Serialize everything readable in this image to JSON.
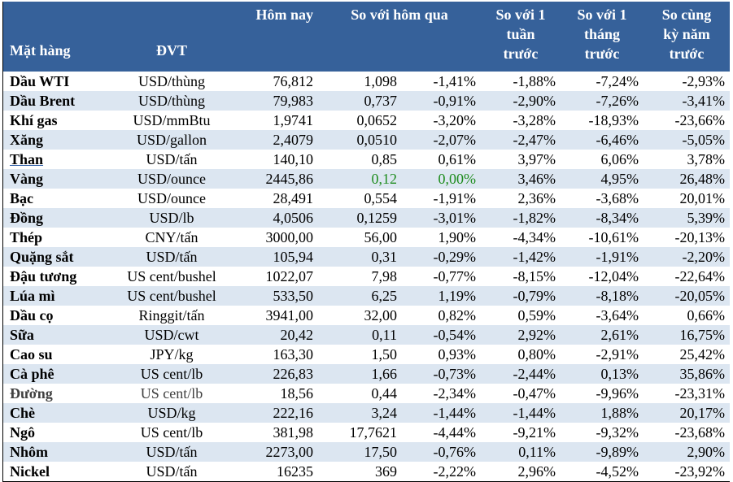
{
  "header": {
    "item": "Mặt hàng",
    "unit": "ĐVT",
    "today": "Hôm nay",
    "vs_yesterday": "So với hôm qua",
    "vs_week": [
      "So với 1",
      "tuần",
      "trước"
    ],
    "vs_month": [
      "So với 1",
      "tháng",
      "trước"
    ],
    "vs_year": [
      "So cùng",
      "kỳ năm",
      "trước"
    ]
  },
  "rows": [
    {
      "name": "Dầu WTI",
      "unit": "USD/thùng",
      "today": "76,812",
      "chg": "1,098",
      "chg_pct": "-1,41%",
      "week": "-1,88%",
      "month": "-7,24%",
      "year": "-2,93%"
    },
    {
      "name": "Dầu Brent",
      "unit": "USD/thùng",
      "today": "79,983",
      "chg": "0,737",
      "chg_pct": "-0,91%",
      "week": "-2,90%",
      "month": "-7,26%",
      "year": "-3,41%"
    },
    {
      "name": "Khí gas",
      "unit": "USD/mmBtu",
      "today": "1,9741",
      "chg": "0,0652",
      "chg_pct": "-3,20%",
      "week": "-3,28%",
      "month": "-18,93%",
      "year": "-23,66%"
    },
    {
      "name": "Xăng",
      "unit": "USD/gallon",
      "today": "2,4079",
      "chg": "0,0510",
      "chg_pct": "-2,07%",
      "week": "-2,47%",
      "month": "-6,46%",
      "year": "-5,05%"
    },
    {
      "name": "Than",
      "unit": "USD/tấn",
      "today": "140,10",
      "chg": "0,85",
      "chg_pct": "0,61%",
      "week": "3,97%",
      "month": "6,06%",
      "year": "3,78%"
    },
    {
      "name": "Vàng",
      "unit": "USD/ounce",
      "today": "2445,86",
      "chg": "0,12",
      "chg_pct": "0,00%",
      "week": "3,46%",
      "month": "4,95%",
      "year": "26,48%"
    },
    {
      "name": "Bạc",
      "unit": "USD/ounce",
      "today": "28,491",
      "chg": "0,554",
      "chg_pct": "-1,91%",
      "week": "2,36%",
      "month": "-3,68%",
      "year": "20,01%"
    },
    {
      "name": "Đồng",
      "unit": "USD/lb",
      "today": "4,0506",
      "chg": "0,1259",
      "chg_pct": "-3,01%",
      "week": "-1,82%",
      "month": "-8,34%",
      "year": "5,39%"
    },
    {
      "name": "Thép",
      "unit": "CNY/tấn",
      "today": "3000,00",
      "chg": "56,00",
      "chg_pct": "1,90%",
      "week": "-4,34%",
      "month": "-10,61%",
      "year": "-20,13%"
    },
    {
      "name": "Quặng sắt",
      "unit": "USD/tấn",
      "today": "105,94",
      "chg": "0,31",
      "chg_pct": "-0,29%",
      "week": "-1,42%",
      "month": "-1,91%",
      "year": "-2,20%"
    },
    {
      "name": "Đậu tương",
      "unit": "US cent/bushel",
      "today": "1022,07",
      "chg": "7,98",
      "chg_pct": "-0,77%",
      "week": "-8,15%",
      "month": "-12,04%",
      "year": "-22,64%"
    },
    {
      "name": "Lúa mì",
      "unit": "US cent/bushel",
      "today": "533,50",
      "chg": "6,25",
      "chg_pct": "1,19%",
      "week": "-0,79%",
      "month": "-8,18%",
      "year": "-20,05%"
    },
    {
      "name": "Dầu cọ",
      "unit": "Ringgit/tấn",
      "today": "3941,00",
      "chg": "32,00",
      "chg_pct": "0,82%",
      "week": "0,59%",
      "month": "-3,64%",
      "year": "0,66%"
    },
    {
      "name": "Sữa",
      "unit": "USD/cwt",
      "today": "20,42",
      "chg": "0,11",
      "chg_pct": "-0,54%",
      "week": "2,92%",
      "month": "2,61%",
      "year": "16,75%"
    },
    {
      "name": "Cao su",
      "unit": "JPY/kg",
      "today": "163,30",
      "chg": "1,50",
      "chg_pct": "0,93%",
      "week": "0,80%",
      "month": "-2,91%",
      "year": "25,42%"
    },
    {
      "name": "Cà phê",
      "unit": "US cent/lb",
      "today": "226,83",
      "chg": "1,66",
      "chg_pct": "-0,73%",
      "week": "-2,44%",
      "month": "0,13%",
      "year": "35,86%"
    },
    {
      "name": "Đường",
      "unit": "US cent/lb",
      "today": "18,56",
      "chg": "0,44",
      "chg_pct": "-2,34%",
      "week": "-0,47%",
      "month": "-9,96%",
      "year": "-23,31%"
    },
    {
      "name": "Chè",
      "unit": "USD/kg",
      "today": "222,16",
      "chg": "3,24",
      "chg_pct": "-1,44%",
      "week": "-1,44%",
      "month": "1,88%",
      "year": "20,17%"
    },
    {
      "name": "Ngô",
      "unit": "US cent/lb",
      "today": "381,98",
      "chg": "17,7621",
      "chg_pct": "-4,44%",
      "week": "-9,21%",
      "month": "-9,32%",
      "year": "-23,68%"
    },
    {
      "name": "Nhôm",
      "unit": "USD/tấn",
      "today": "2273,00",
      "chg": "17,50",
      "chg_pct": "-0,76%",
      "week": "0,11%",
      "month": "-9,89%",
      "year": "2,90%"
    },
    {
      "name": "Nickel",
      "unit": "USD/tấn",
      "today": "16235",
      "chg": "369",
      "chg_pct": "-2,22%",
      "week": "2,96%",
      "month": "-4,52%",
      "year": "-23,92%"
    }
  ],
  "colors": {
    "header_bg": "#36619A",
    "alt_row": "#DCE6F1",
    "unchanged": "#1E8C1E"
  }
}
